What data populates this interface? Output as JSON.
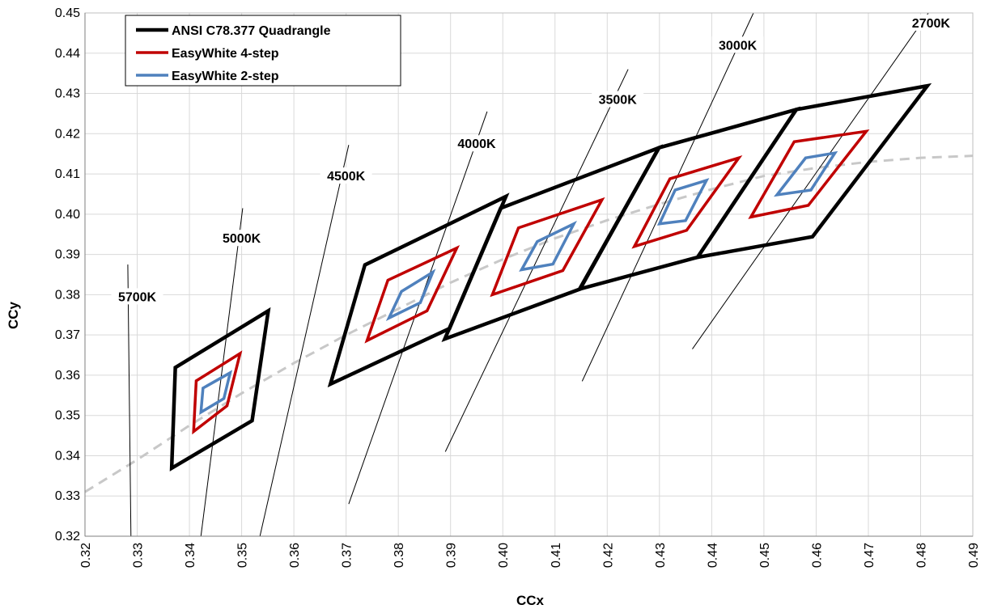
{
  "chart_data": {
    "type": "line",
    "xlabel": "CCx",
    "ylabel": "CCy",
    "xlim": [
      0.32,
      0.49
    ],
    "ylim": [
      0.32,
      0.45
    ],
    "x_ticks": [
      "0.32",
      "0.33",
      "0.34",
      "0.35",
      "0.36",
      "0.37",
      "0.38",
      "0.39",
      "0.40",
      "0.41",
      "0.42",
      "0.43",
      "0.44",
      "0.45",
      "0.46",
      "0.47",
      "0.48",
      "0.49"
    ],
    "y_ticks": [
      "0.32",
      "0.33",
      "0.34",
      "0.35",
      "0.36",
      "0.37",
      "0.38",
      "0.39",
      "0.40",
      "0.41",
      "0.42",
      "0.43",
      "0.44",
      "0.45"
    ],
    "grid": "major, light gray",
    "legend_position": "top-left",
    "colors": {
      "ansi": "#000000",
      "four_step": "#c00000",
      "two_step": "#4f81bd",
      "planckian": "#c8c8c8",
      "isotherm": "#000000"
    },
    "legend": [
      "ANSI C78.377 Quadrangle",
      "EasyWhite 4-step",
      "EasyWhite 2-step"
    ],
    "series": [
      {
        "name": "ANSI C78.377 Quadrangle",
        "quadrangles": [
          [
            [
              0.3373,
              0.3619
            ],
            [
              0.3551,
              0.376
            ],
            [
              0.352,
              0.3487
            ],
            [
              0.3366,
              0.3369
            ]
          ],
          [
            [
              0.3736,
              0.3874
            ],
            [
              0.4006,
              0.4044
            ],
            [
              0.3898,
              0.3716
            ],
            [
              0.367,
              0.3578
            ]
          ],
          [
            [
              0.3996,
              0.4015
            ],
            [
              0.4299,
              0.4165
            ],
            [
              0.4148,
              0.3814
            ],
            [
              0.3889,
              0.369
            ]
          ],
          [
            [
              0.4299,
              0.4165
            ],
            [
              0.4562,
              0.426
            ],
            [
              0.4373,
              0.3893
            ],
            [
              0.4147,
              0.3814
            ]
          ],
          [
            [
              0.4562,
              0.426
            ],
            [
              0.4813,
              0.4319
            ],
            [
              0.4593,
              0.3944
            ],
            [
              0.4373,
              0.3893
            ]
          ]
        ]
      },
      {
        "name": "EasyWhite 4-step",
        "quadrangles": [
          [
            [
              0.3413,
              0.3586
            ],
            [
              0.3497,
              0.3654
            ],
            [
              0.3472,
              0.3524
            ],
            [
              0.3408,
              0.346
            ]
          ],
          [
            [
              0.378,
              0.3836
            ],
            [
              0.3912,
              0.3916
            ],
            [
              0.3855,
              0.376
            ],
            [
              0.374,
              0.3686
            ]
          ],
          [
            [
              0.403,
              0.3966
            ],
            [
              0.419,
              0.4036
            ],
            [
              0.4115,
              0.386
            ],
            [
              0.398,
              0.38
            ]
          ],
          [
            [
              0.432,
              0.4088
            ],
            [
              0.4452,
              0.414
            ],
            [
              0.4352,
              0.396
            ],
            [
              0.4252,
              0.392
            ]
          ],
          [
            [
              0.4558,
              0.418
            ],
            [
              0.4696,
              0.4206
            ],
            [
              0.4585,
              0.4022
            ],
            [
              0.4475,
              0.3993
            ]
          ]
        ]
      },
      {
        "name": "EasyWhite 2-step",
        "quadrangles": [
          [
            [
              0.3426,
              0.3568
            ],
            [
              0.3478,
              0.3606
            ],
            [
              0.3466,
              0.3542
            ],
            [
              0.3422,
              0.3508
            ]
          ],
          [
            [
              0.3806,
              0.3808
            ],
            [
              0.3866,
              0.3856
            ],
            [
              0.3842,
              0.378
            ],
            [
              0.3782,
              0.3742
            ]
          ],
          [
            [
              0.4066,
              0.3932
            ],
            [
              0.4136,
              0.3976
            ],
            [
              0.4096,
              0.3876
            ],
            [
              0.4036,
              0.3862
            ]
          ],
          [
            [
              0.433,
              0.406
            ],
            [
              0.439,
              0.4084
            ],
            [
              0.435,
              0.3984
            ],
            [
              0.43,
              0.3976
            ]
          ],
          [
            [
              0.458,
              0.414
            ],
            [
              0.4636,
              0.4152
            ],
            [
              0.459,
              0.406
            ],
            [
              0.4525,
              0.4048
            ]
          ]
        ]
      }
    ],
    "planckian_locus": [
      [
        0.32,
        0.331
      ],
      [
        0.33,
        0.339
      ],
      [
        0.34,
        0.3475
      ],
      [
        0.35,
        0.3555
      ],
      [
        0.36,
        0.363
      ],
      [
        0.37,
        0.37
      ],
      [
        0.38,
        0.3765
      ],
      [
        0.39,
        0.383
      ],
      [
        0.4,
        0.3888
      ],
      [
        0.41,
        0.394
      ],
      [
        0.42,
        0.3985
      ],
      [
        0.43,
        0.4025
      ],
      [
        0.44,
        0.4062
      ],
      [
        0.45,
        0.4095
      ],
      [
        0.46,
        0.4115
      ],
      [
        0.47,
        0.413
      ],
      [
        0.48,
        0.414
      ],
      [
        0.49,
        0.4145
      ]
    ],
    "isotherms": [
      {
        "label": "5700K",
        "line": [
          [
            0.3282,
            0.3875
          ],
          [
            0.3288,
            0.32
          ]
        ],
        "label_pos": [
          0.33,
          0.379
        ]
      },
      {
        "label": "5000K",
        "line": [
          [
            0.3502,
            0.4015
          ],
          [
            0.3422,
            0.32
          ]
        ],
        "label_pos": [
          0.35,
          0.3935
        ]
      },
      {
        "label": "4500K",
        "line": [
          [
            0.3705,
            0.4172
          ],
          [
            0.3535,
            0.32
          ]
        ],
        "label_pos": [
          0.37,
          0.409
        ]
      },
      {
        "label": "4000K",
        "line": [
          [
            0.397,
            0.4255
          ],
          [
            0.3705,
            0.328
          ]
        ],
        "label_pos": [
          0.395,
          0.417
        ]
      },
      {
        "label": "3500K",
        "line": [
          [
            0.424,
            0.436
          ],
          [
            0.389,
            0.341
          ]
        ],
        "label_pos": [
          0.422,
          0.428
        ]
      },
      {
        "label": "3000K",
        "line": [
          [
            0.448,
            0.45
          ],
          [
            0.4152,
            0.3585
          ]
        ],
        "label_pos": [
          0.445,
          0.4415
        ]
      },
      {
        "label": "2700K",
        "line": [
          [
            0.4815,
            0.45
          ],
          [
            0.4363,
            0.3665
          ]
        ],
        "label_pos": [
          0.482,
          0.447
        ]
      }
    ]
  }
}
